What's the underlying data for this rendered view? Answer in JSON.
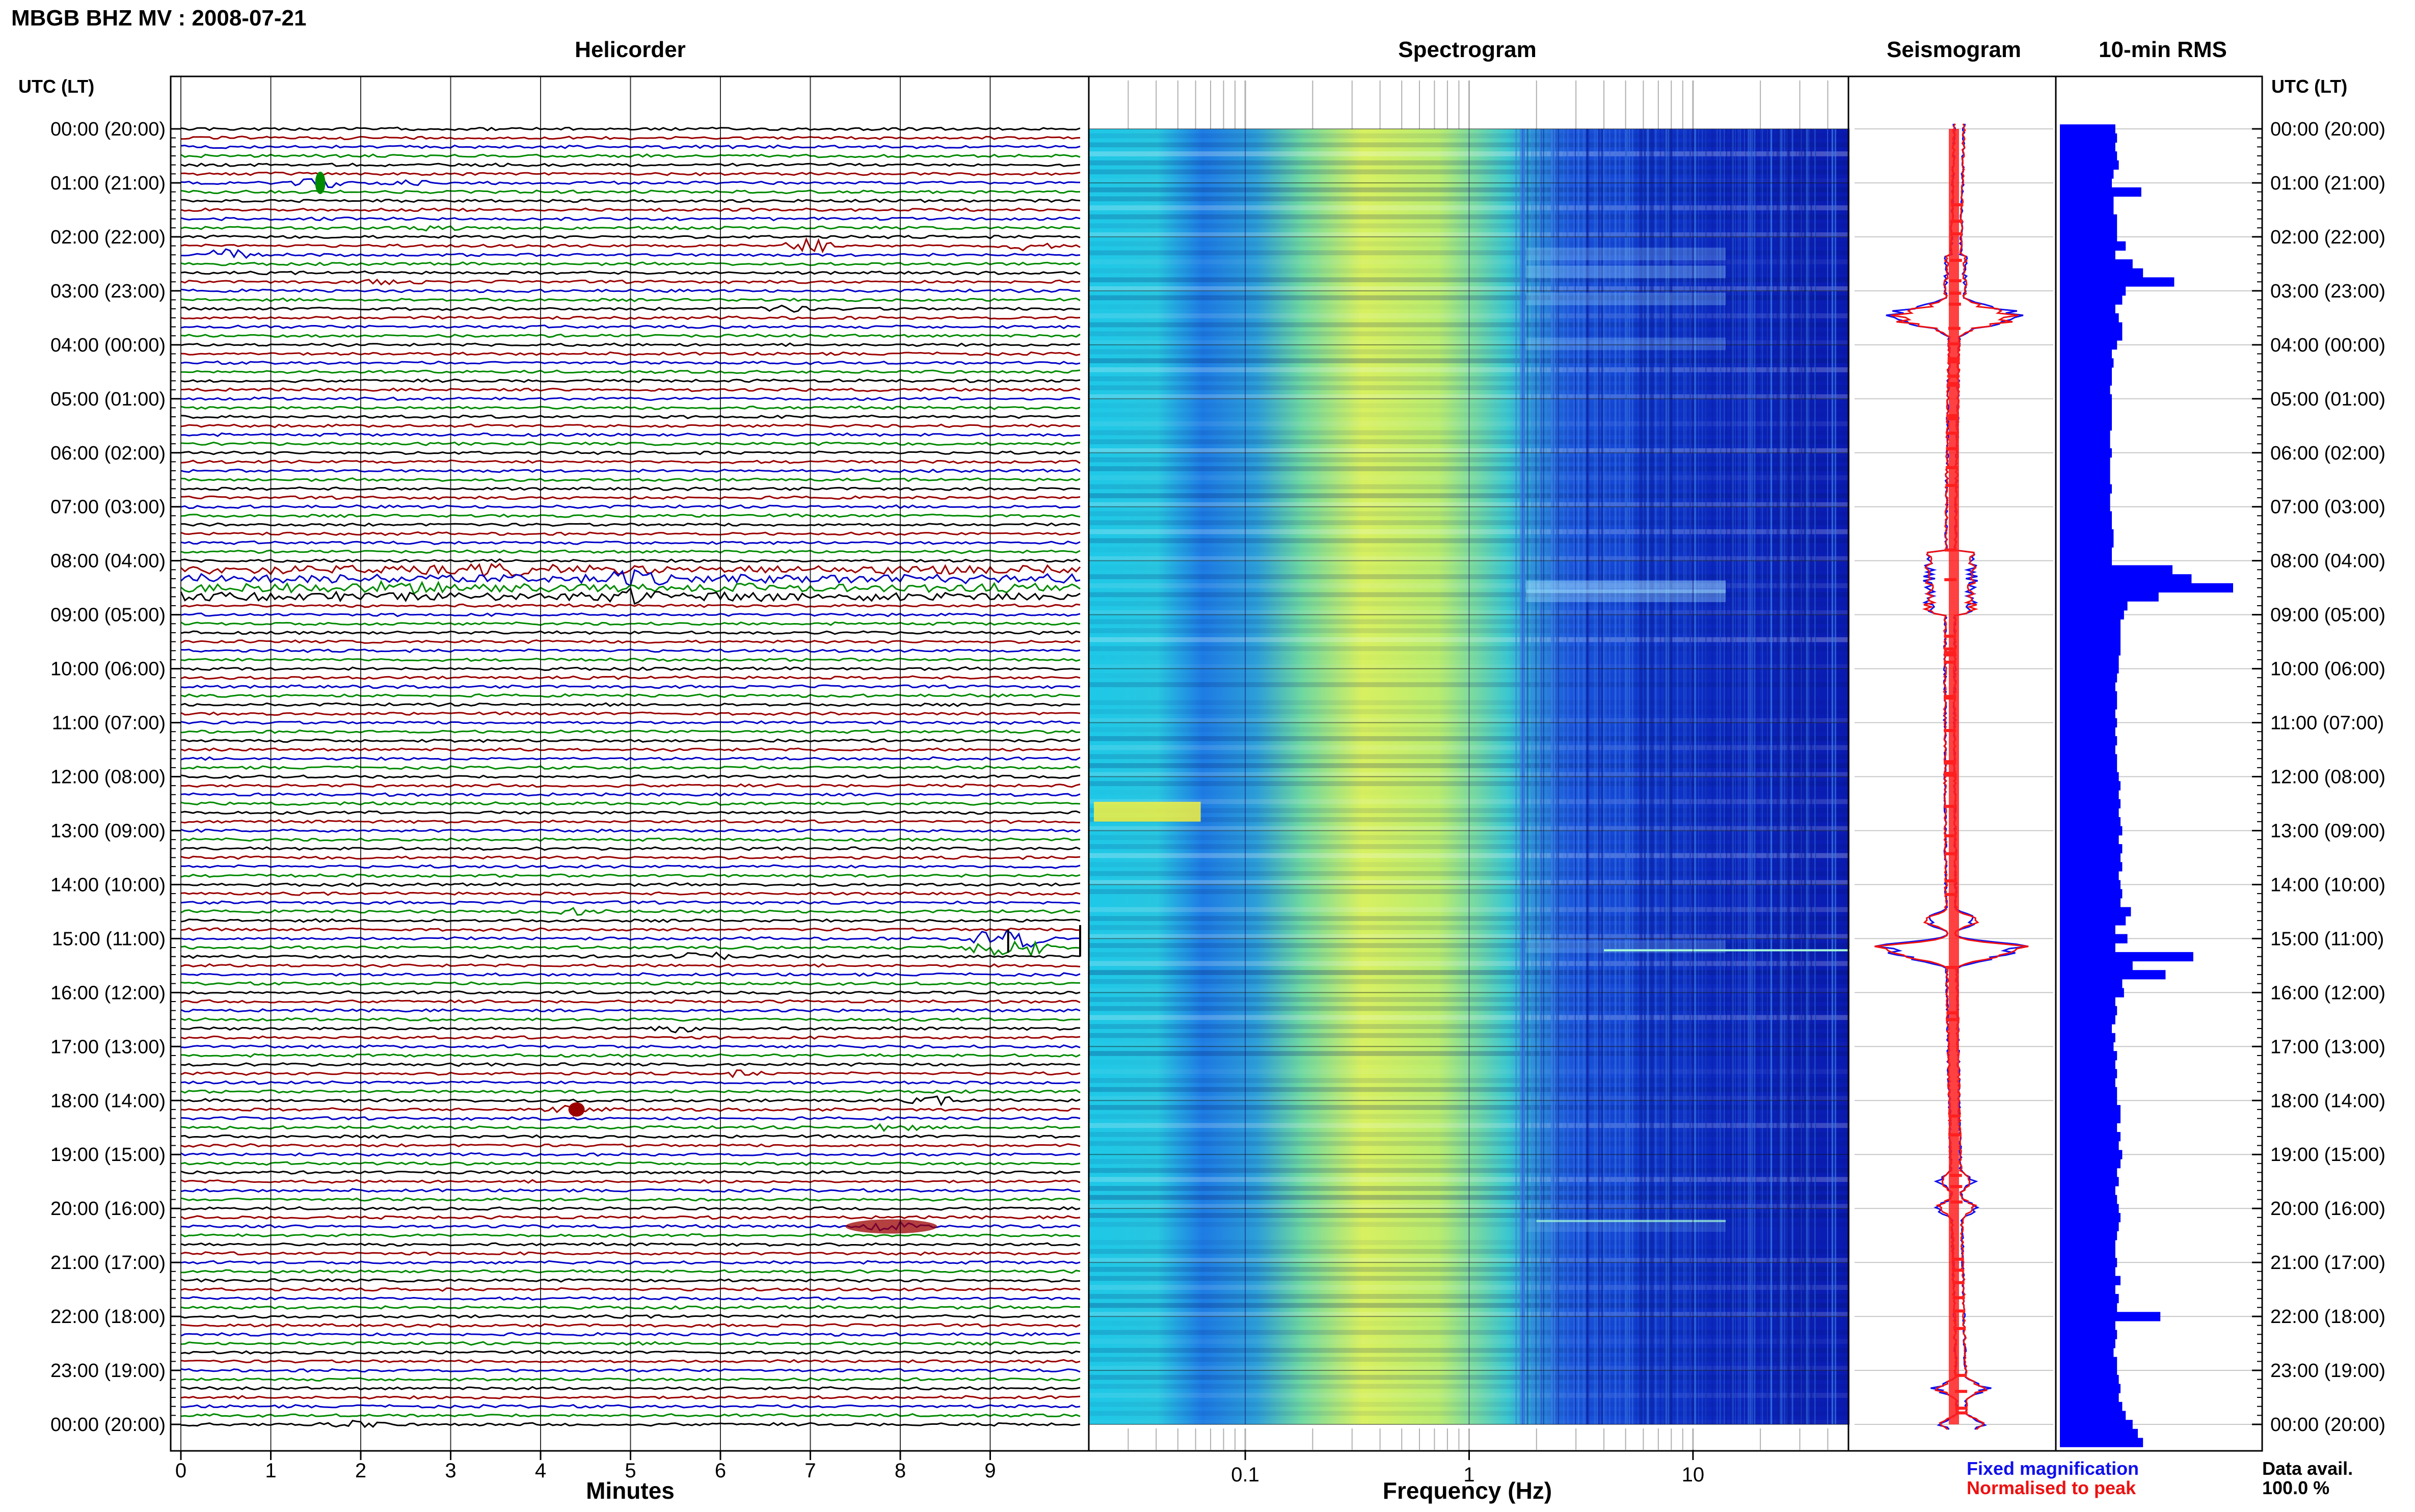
{
  "header": {
    "station_title": "MBGB BHZ MV : 2008-07-21",
    "axis_time_label": "UTC (LT)"
  },
  "panels": {
    "helicorder": "Helicorder",
    "spectrogram": "Spectrogram",
    "seismogram": "Seismogram",
    "rms": "10-min RMS"
  },
  "legend": {
    "fixed": "Fixed magnification",
    "normalised": "Normalised to peak",
    "fixed_color": "#1010ee",
    "normalised_color": "#ee1010"
  },
  "data_availability": {
    "label": "Data avail.",
    "value": "100.0 %"
  },
  "colors": {
    "trace_cycle": [
      "#000000",
      "#9b0000",
      "#0000c8",
      "#008a00"
    ],
    "rms_bar": "#0000ff",
    "spec_low": "#0a1ab0",
    "spec_high": "#ffff40"
  },
  "chart_data": [
    {
      "type": "line",
      "name": "Helicorder",
      "xlabel": "Minutes",
      "x_ticks": [
        0,
        1,
        2,
        3,
        4,
        5,
        6,
        7,
        8,
        9
      ],
      "x_range": [
        0,
        10
      ],
      "rows_count": 145,
      "time_labels": [
        "00:00 (20:00)",
        "01:00 (21:00)",
        "02:00 (22:00)",
        "03:00 (23:00)",
        "04:00 (00:00)",
        "05:00 (01:00)",
        "06:00 (02:00)",
        "07:00 (03:00)",
        "08:00 (04:00)",
        "09:00 (05:00)",
        "10:00 (06:00)",
        "11:00 (07:00)",
        "12:00 (08:00)",
        "13:00 (09:00)",
        "14:00 (10:00)",
        "15:00 (11:00)",
        "16:00 (12:00)",
        "17:00 (13:00)",
        "18:00 (14:00)",
        "19:00 (15:00)",
        "20:00 (16:00)",
        "21:00 (17:00)",
        "22:00 (18:00)",
        "23:00 (19:00)",
        "00:00 (20:00)"
      ],
      "events": [
        {
          "row": 6,
          "minute": 1.55,
          "amp": 2.2
        },
        {
          "row": 6,
          "minute": 2.55,
          "amp": 1.0
        },
        {
          "row": 11,
          "minute": 2.8,
          "amp": 1.2
        },
        {
          "row": 13,
          "minute": 7.0,
          "amp": 3.0
        },
        {
          "row": 13,
          "minute": 9.4,
          "amp": 1.5
        },
        {
          "row": 14,
          "minute": 0.5,
          "amp": 2.5
        },
        {
          "row": 17,
          "minute": 2.35,
          "amp": 1.2
        },
        {
          "row": 20,
          "minute": 6.7,
          "amp": 1.3
        },
        {
          "row": 49,
          "minute": 3.5,
          "amp": 2.2
        },
        {
          "row": 50,
          "minute": 5.0,
          "amp": 2.5
        },
        {
          "row": 51,
          "minute": 2.5,
          "amp": 2.5
        },
        {
          "row": 52,
          "minute": 5.0,
          "amp": 2.2
        },
        {
          "row": 87,
          "minute": 4.5,
          "amp": 1.5
        },
        {
          "row": 90,
          "minute": 9.2,
          "amp": 6.0
        },
        {
          "row": 91,
          "minute": 9.2,
          "amp": 5.5
        },
        {
          "row": 92,
          "minute": 5.8,
          "amp": 2.2
        },
        {
          "row": 100,
          "minute": 5.5,
          "amp": 1.2
        },
        {
          "row": 105,
          "minute": 6.2,
          "amp": 1.0
        },
        {
          "row": 108,
          "minute": 8.4,
          "amp": 1.5
        },
        {
          "row": 109,
          "minute": 4.4,
          "amp": 2.2
        },
        {
          "row": 111,
          "minute": 7.9,
          "amp": 1.8
        },
        {
          "row": 122,
          "minute": 7.9,
          "amp": 2.0
        },
        {
          "row": 144,
          "minute": 1.9,
          "amp": 1.8
        }
      ]
    },
    {
      "type": "heatmap",
      "name": "Spectrogram",
      "xlabel": "Frequency (Hz)",
      "x_scale": "log",
      "x_range": [
        0.02,
        50
      ],
      "x_ticks": [
        0.1,
        1,
        10
      ],
      "x_tick_labels": [
        "0.1",
        "1",
        "10"
      ]
    },
    {
      "type": "line",
      "name": "Seismogram",
      "series": [
        "Fixed magnification",
        "Normalised to peak"
      ]
    },
    {
      "type": "bar",
      "name": "10-min RMS",
      "orientation": "horizontal",
      "values": [
        0.32,
        0.33,
        0.32,
        0.33,
        0.34,
        0.31,
        0.3,
        0.47,
        0.31,
        0.31,
        0.33,
        0.33,
        0.33,
        0.38,
        0.32,
        0.42,
        0.48,
        0.66,
        0.38,
        0.36,
        0.32,
        0.34,
        0.36,
        0.36,
        0.33,
        0.3,
        0.31,
        0.3,
        0.3,
        0.29,
        0.3,
        0.3,
        0.3,
        0.3,
        0.29,
        0.29,
        0.3,
        0.29,
        0.29,
        0.29,
        0.3,
        0.29,
        0.29,
        0.3,
        0.3,
        0.31,
        0.31,
        0.3,
        0.3,
        0.65,
        0.76,
        1.0,
        0.57,
        0.39,
        0.37,
        0.35,
        0.35,
        0.35,
        0.35,
        0.34,
        0.34,
        0.33,
        0.32,
        0.33,
        0.33,
        0.32,
        0.33,
        0.32,
        0.33,
        0.32,
        0.33,
        0.33,
        0.34,
        0.35,
        0.34,
        0.35,
        0.34,
        0.35,
        0.36,
        0.34,
        0.36,
        0.35,
        0.36,
        0.34,
        0.35,
        0.36,
        0.35,
        0.41,
        0.38,
        0.32,
        0.39,
        0.32,
        0.77,
        0.42,
        0.61,
        0.36,
        0.37,
        0.32,
        0.33,
        0.32,
        0.3,
        0.32,
        0.31,
        0.33,
        0.32,
        0.33,
        0.32,
        0.33,
        0.33,
        0.35,
        0.35,
        0.33,
        0.35,
        0.34,
        0.36,
        0.35,
        0.33,
        0.34,
        0.32,
        0.33,
        0.34,
        0.35,
        0.34,
        0.33,
        0.32,
        0.32,
        0.33,
        0.32,
        0.35,
        0.32,
        0.34,
        0.33,
        0.58,
        0.32,
        0.33,
        0.32,
        0.31,
        0.33,
        0.33,
        0.34,
        0.35,
        0.34,
        0.36,
        0.38,
        0.42,
        0.45,
        0.48
      ]
    }
  ]
}
